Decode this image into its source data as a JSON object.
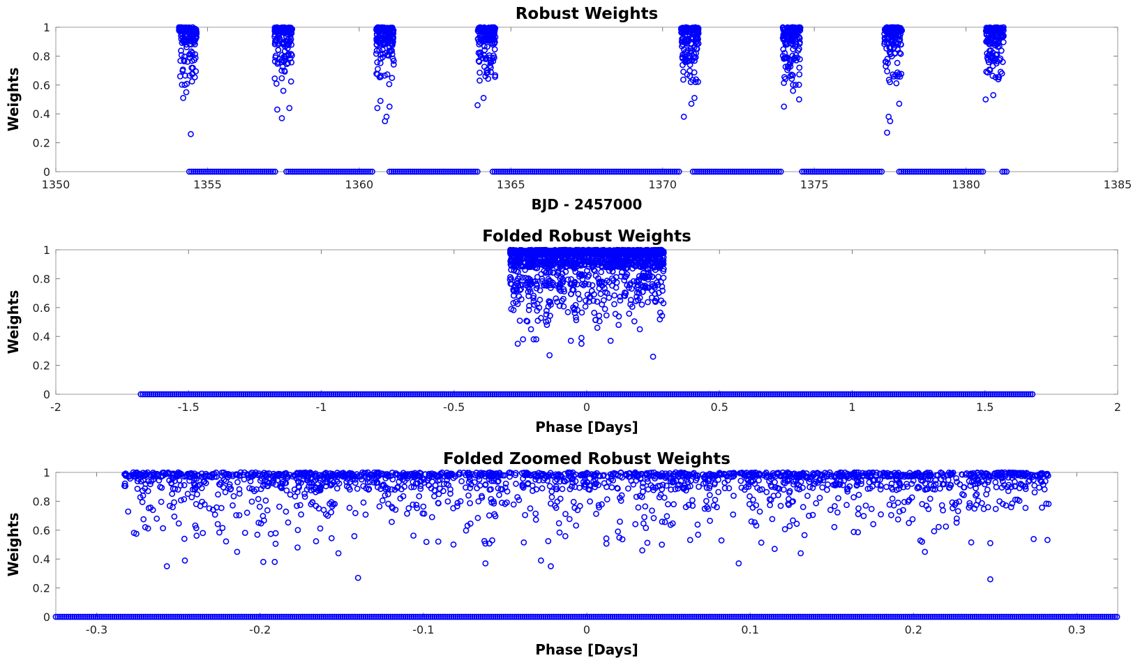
{
  "marker_color": "#0000ff",
  "chart_data": [
    {
      "type": "scatter",
      "title": "Robust Weights",
      "xlabel": "BJD - 2457000",
      "ylabel": "Weights",
      "xlim": [
        1350,
        1385
      ],
      "ylim": [
        0,
        1
      ],
      "xticks": [
        "1350",
        "1355",
        "1360",
        "1365",
        "1370",
        "1375",
        "1380",
        "1385"
      ],
      "yticks": [
        "0",
        "0.2",
        "0.4",
        "0.6",
        "0.8",
        "1"
      ],
      "marker": "open-circle",
      "transit_centers": [
        1354.35,
        1357.5,
        1360.85,
        1364.2,
        1370.9,
        1374.25,
        1377.6,
        1380.95
      ],
      "transit_halfwidth": 0.29,
      "zero_weight_ranges": [
        [
          1354.4,
          1357.25
        ],
        [
          1357.6,
          1360.45
        ],
        [
          1361.0,
          1363.9
        ],
        [
          1364.4,
          1370.6
        ],
        [
          1371.0,
          1373.95
        ],
        [
          1374.6,
          1377.25
        ],
        [
          1377.8,
          1380.6
        ],
        [
          1381.2,
          1381.4
        ]
      ],
      "outliers": [
        [
          1354.2,
          0.51
        ],
        [
          1354.3,
          0.55
        ],
        [
          1354.45,
          0.26
        ],
        [
          1354.25,
          0.6
        ],
        [
          1354.1,
          0.66
        ],
        [
          1357.3,
          0.43
        ],
        [
          1357.45,
          0.37
        ],
        [
          1357.7,
          0.44
        ],
        [
          1357.5,
          0.56
        ],
        [
          1360.6,
          0.44
        ],
        [
          1360.85,
          0.35
        ],
        [
          1360.9,
          0.38
        ],
        [
          1361.0,
          0.45
        ],
        [
          1360.7,
          0.49
        ],
        [
          1363.9,
          0.46
        ],
        [
          1364.1,
          0.51
        ],
        [
          1370.7,
          0.38
        ],
        [
          1370.95,
          0.47
        ],
        [
          1371.05,
          0.51
        ],
        [
          1374.0,
          0.45
        ],
        [
          1374.3,
          0.56
        ],
        [
          1374.5,
          0.5
        ],
        [
          1377.4,
          0.27
        ],
        [
          1377.5,
          0.35
        ],
        [
          1377.45,
          0.38
        ],
        [
          1377.8,
          0.47
        ],
        [
          1380.65,
          0.5
        ],
        [
          1380.9,
          0.53
        ]
      ]
    },
    {
      "type": "scatter",
      "title": "Folded Robust Weights",
      "xlabel": "Phase [Days]",
      "ylabel": "Weights",
      "xlim": [
        -2,
        2
      ],
      "ylim": [
        0,
        1
      ],
      "xticks": [
        "-2",
        "-1.5",
        "-1",
        "-0.5",
        "0",
        "0.5",
        "1",
        "1.5",
        "2"
      ],
      "yticks": [
        "0",
        "0.2",
        "0.4",
        "0.6",
        "0.8",
        "1"
      ],
      "marker": "open-circle",
      "transit_range": [
        -0.29,
        0.29
      ],
      "zero_weight_range": [
        -1.68,
        1.68
      ],
      "outliers": [
        [
          -0.26,
          0.35
        ],
        [
          -0.24,
          0.38
        ],
        [
          -0.14,
          0.27
        ],
        [
          -0.06,
          0.37
        ],
        [
          -0.02,
          0.39
        ],
        [
          -0.02,
          0.35
        ],
        [
          0.09,
          0.37
        ],
        [
          0.25,
          0.26
        ],
        [
          -0.19,
          0.38
        ],
        [
          -0.2,
          0.38
        ],
        [
          -0.21,
          0.45
        ],
        [
          0.2,
          0.45
        ],
        [
          0.04,
          0.46
        ],
        [
          -0.15,
          0.48
        ],
        [
          0.12,
          0.48
        ]
      ]
    },
    {
      "type": "scatter",
      "title": "Folded Zoomed Robust Weights",
      "xlabel": "Phase [Days]",
      "ylabel": "Weights",
      "xlim": [
        -0.325,
        0.325
      ],
      "ylim": [
        0,
        1
      ],
      "xticks": [
        "-0.3",
        "-0.2",
        "-0.1",
        "0",
        "0.1",
        "0.2",
        "0.3"
      ],
      "yticks": [
        "0",
        "0.2",
        "0.4",
        "0.6",
        "0.8",
        "1"
      ],
      "marker": "open-circle",
      "transit_range": [
        -0.283,
        0.283
      ],
      "zero_weight_range": [
        -0.325,
        0.325
      ],
      "outliers": [
        [
          -0.257,
          0.35
        ],
        [
          -0.246,
          0.39
        ],
        [
          -0.214,
          0.45
        ],
        [
          -0.198,
          0.38
        ],
        [
          -0.191,
          0.38
        ],
        [
          -0.14,
          0.27
        ],
        [
          -0.062,
          0.37
        ],
        [
          -0.028,
          0.39
        ],
        [
          -0.022,
          0.35
        ],
        [
          0.093,
          0.37
        ],
        [
          0.207,
          0.45
        ],
        [
          0.247,
          0.26
        ],
        [
          0.247,
          0.51
        ],
        [
          0.034,
          0.46
        ],
        [
          0.046,
          0.5
        ],
        [
          0.115,
          0.47
        ],
        [
          0.131,
          0.44
        ],
        [
          -0.152,
          0.44
        ],
        [
          -0.177,
          0.48
        ],
        [
          -0.235,
          0.58
        ]
      ]
    }
  ]
}
